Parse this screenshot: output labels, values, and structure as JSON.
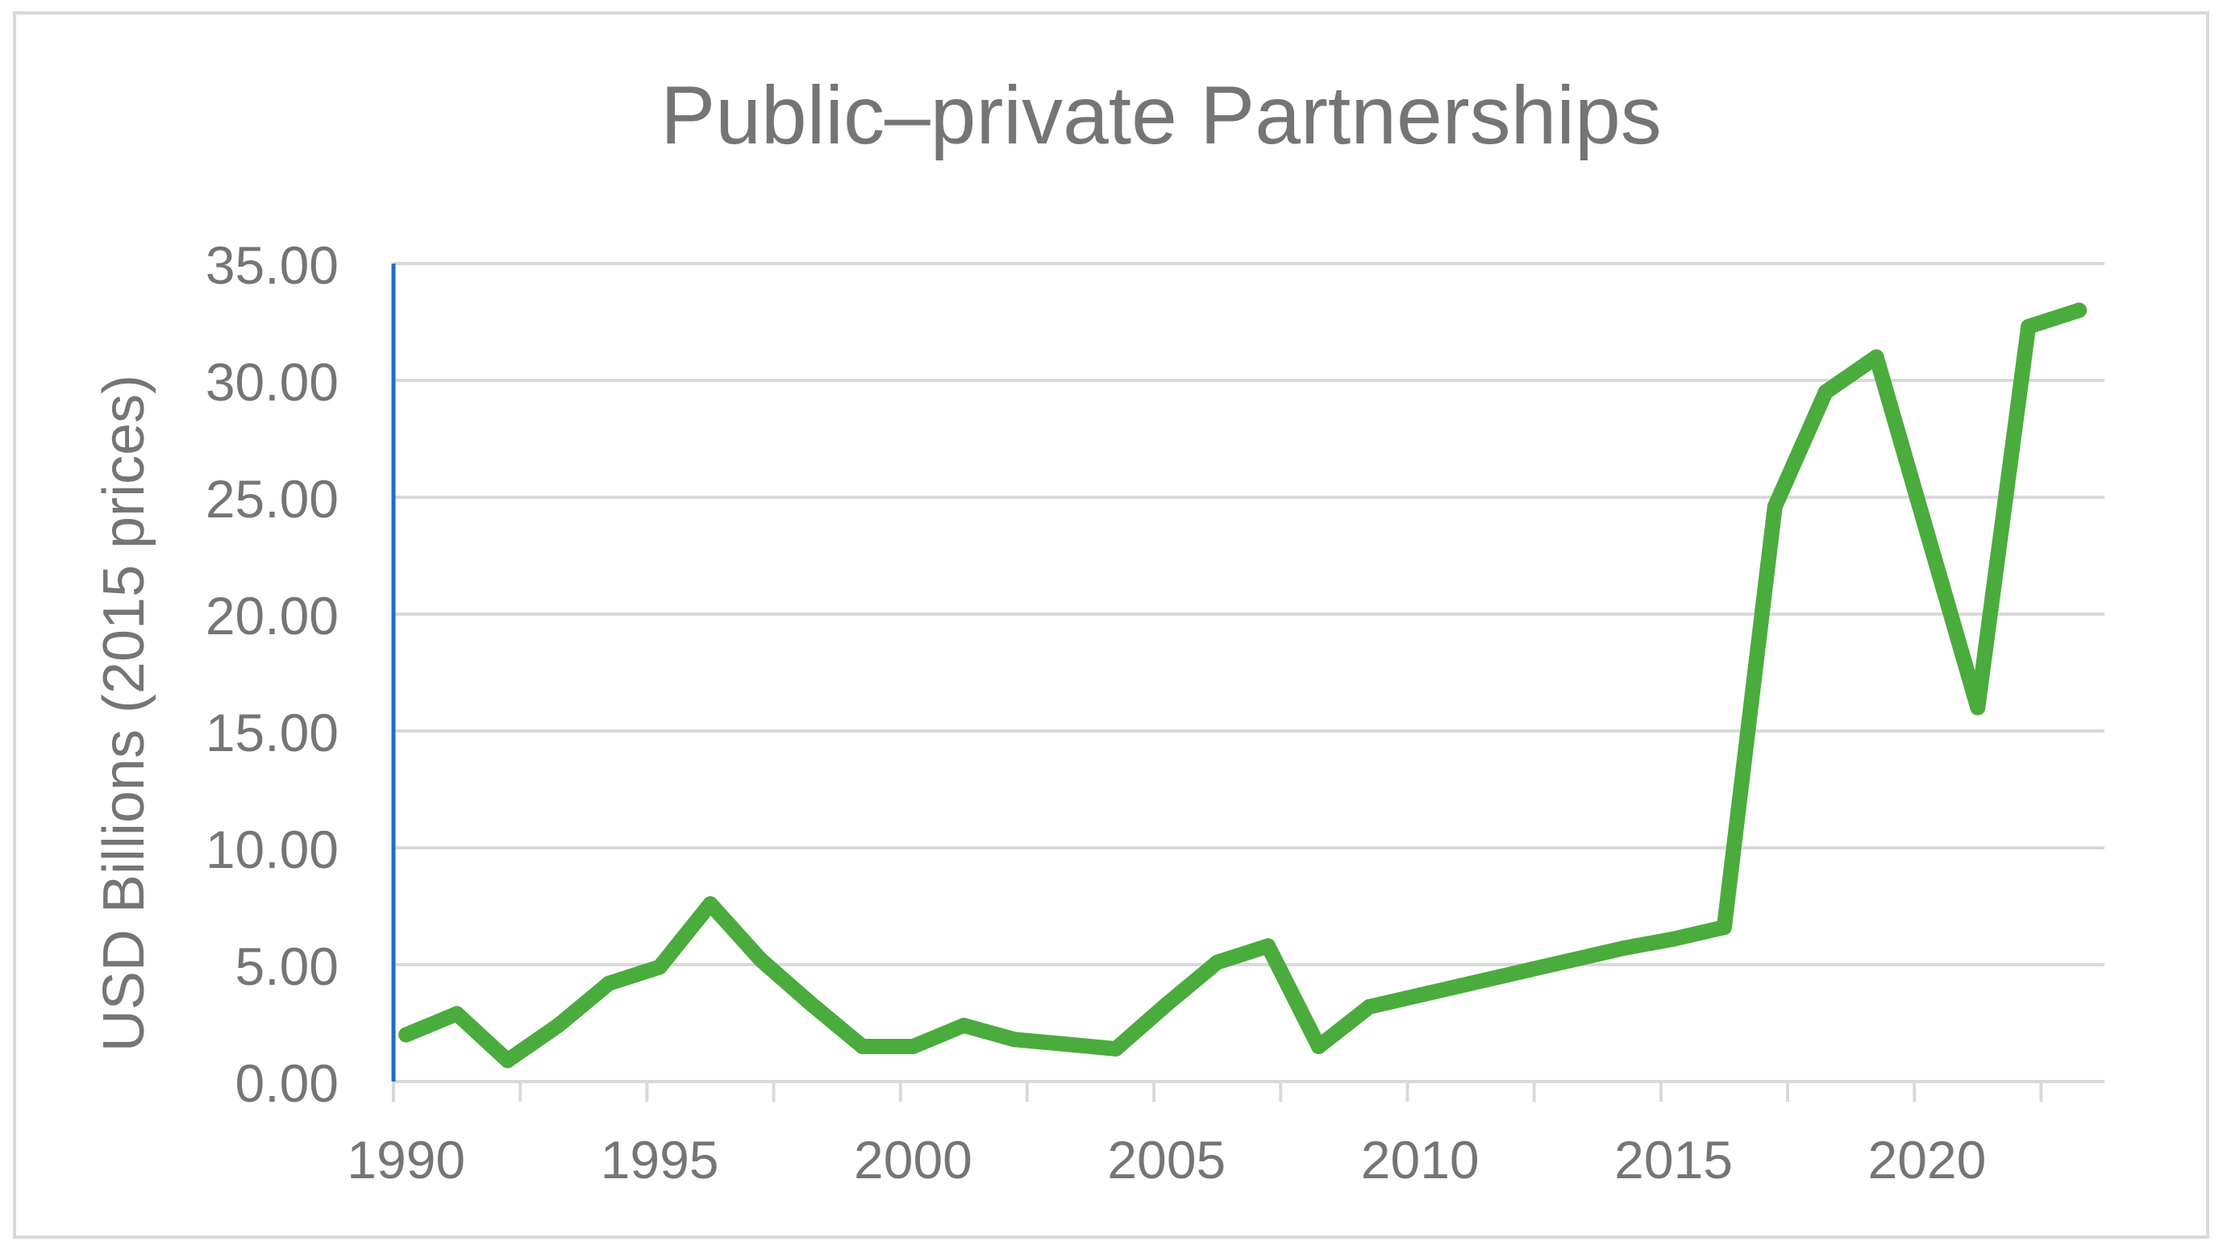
{
  "chart_data": {
    "type": "line",
    "title": "Public–private Partnerships",
    "xlabel": "",
    "ylabel": "USD Billions (2015 prices)",
    "ylim": [
      0,
      35
    ],
    "y_ticks": [
      "0.00",
      "5.00",
      "10.00",
      "15.00",
      "20.00",
      "25.00",
      "30.00",
      "35.00"
    ],
    "x_tick_labels": [
      "1990",
      "1995",
      "2000",
      "2005",
      "2010",
      "2015",
      "2020"
    ],
    "grid": true,
    "legend": "none",
    "colors": {
      "series": "#4aac3c",
      "grid": "#d9d9d9",
      "axis_left": "#1f6fc5",
      "text": "#757575",
      "border": "#d9d9d9"
    },
    "series": [
      {
        "x": [
          1990,
          1991,
          1992,
          1993,
          1994,
          1995,
          1996,
          1997,
          1998,
          1999,
          2000,
          2001,
          2002,
          2003,
          2004,
          2005,
          2006,
          2007,
          2008,
          2009,
          2010,
          2011,
          2012,
          2013,
          2014,
          2015,
          2016,
          2017,
          2018,
          2019,
          2020,
          2021,
          2022,
          2023
        ],
        "values": [
          2.0,
          2.9,
          0.9,
          2.4,
          4.2,
          4.9,
          7.6,
          5.2,
          3.3,
          1.5,
          1.5,
          2.4,
          1.8,
          1.6,
          1.4,
          3.3,
          5.1,
          5.8,
          1.5,
          3.2,
          3.7,
          4.2,
          4.7,
          5.2,
          5.7,
          6.1,
          6.6,
          24.6,
          29.5,
          31.0,
          23.5,
          16.0,
          32.3,
          33.0
        ]
      }
    ]
  }
}
